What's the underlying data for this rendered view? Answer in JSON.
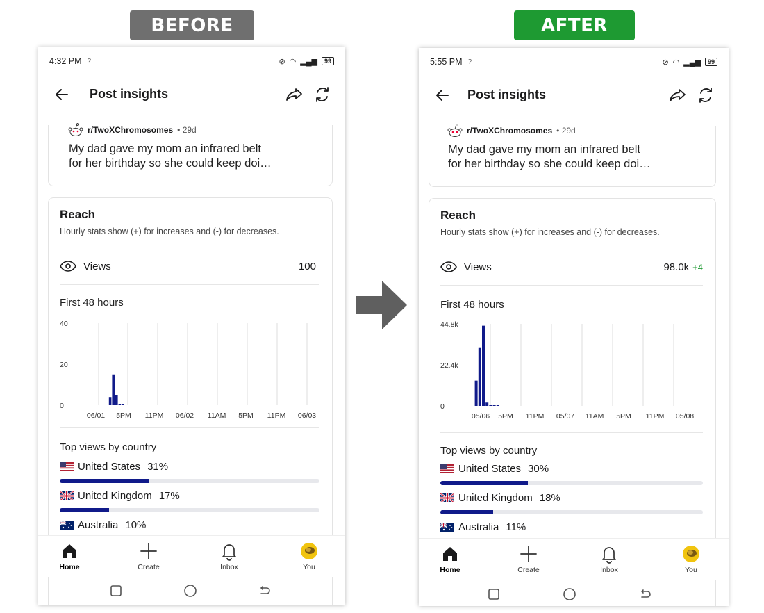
{
  "labels": {
    "before": "BEFORE",
    "after": "AFTER"
  },
  "colors": {
    "before_tag": "#6f6f6f",
    "after_tag": "#1e9a32",
    "bar": "#101a8a",
    "delta": "#1e9a32"
  },
  "common": {
    "sim_icon": "?",
    "app_title": "Post insights",
    "subreddit": "r/TwoXChromosomes",
    "post_age": "29d",
    "post_line1": "My dad gave my mom an infrared belt",
    "post_line2": "for her birthday so she could keep doi…",
    "reach_title": "Reach",
    "reach_desc": "Hourly stats show (+) for increases and (-) for decreases.",
    "views_label": "Views",
    "first48": "First 48 hours",
    "top_views": "Top views by country",
    "nav": {
      "home": "Home",
      "create": "Create",
      "inbox": "Inbox",
      "you": "You"
    },
    "icons": [
      "back-arrow-icon",
      "share-icon",
      "refresh-icon",
      "snoo-avatar-icon",
      "eye-icon",
      "home-icon",
      "plus-icon",
      "bell-icon",
      "avatar-icon"
    ]
  },
  "before": {
    "time": "4:32 PM",
    "battery": "99",
    "views_value": "100",
    "views_delta": "",
    "countries": [
      {
        "name": "United States",
        "pct": "31%",
        "fraction": 0.31,
        "flag": "us"
      },
      {
        "name": "United Kingdom",
        "pct": "17%",
        "fraction": 0.17,
        "flag": "uk"
      },
      {
        "name": "Australia",
        "pct": "10%",
        "fraction": 0.1,
        "flag": "au"
      }
    ]
  },
  "after": {
    "time": "5:55 PM",
    "battery": "99",
    "views_value": "98.0k",
    "views_delta": "+4",
    "countries": [
      {
        "name": "United States",
        "pct": "30%",
        "fraction": 0.3,
        "flag": "us"
      },
      {
        "name": "United Kingdom",
        "pct": "18%",
        "fraction": 0.18,
        "flag": "uk"
      },
      {
        "name": "Australia",
        "pct": "11%",
        "fraction": 0.11,
        "flag": "au"
      }
    ]
  },
  "chart_data": [
    {
      "type": "bar",
      "title": "First 48 hours",
      "y_ticks": [
        "40",
        "20",
        "0"
      ],
      "ylim": [
        0,
        40
      ],
      "x_ticks": [
        "06/01",
        "5PM",
        "11PM",
        "06/02",
        "11AM",
        "5PM",
        "11PM",
        "06/03"
      ],
      "grid": true,
      "values": [
        0,
        0,
        0,
        0,
        0,
        0,
        0,
        0,
        4,
        15,
        5,
        0.3,
        0.3,
        0,
        0
      ]
    },
    {
      "type": "bar",
      "title": "First 48 hours",
      "y_ticks": [
        "44.8k",
        "22.4k",
        "0"
      ],
      "ylim": [
        0,
        44800
      ],
      "x_ticks": [
        "05/06",
        "5PM",
        "11PM",
        "05/07",
        "11AM",
        "5PM",
        "11PM",
        "05/08"
      ],
      "grid": true,
      "values": [
        0,
        0,
        0,
        13800,
        32000,
        43800,
        1800,
        300,
        200,
        150
      ]
    }
  ]
}
